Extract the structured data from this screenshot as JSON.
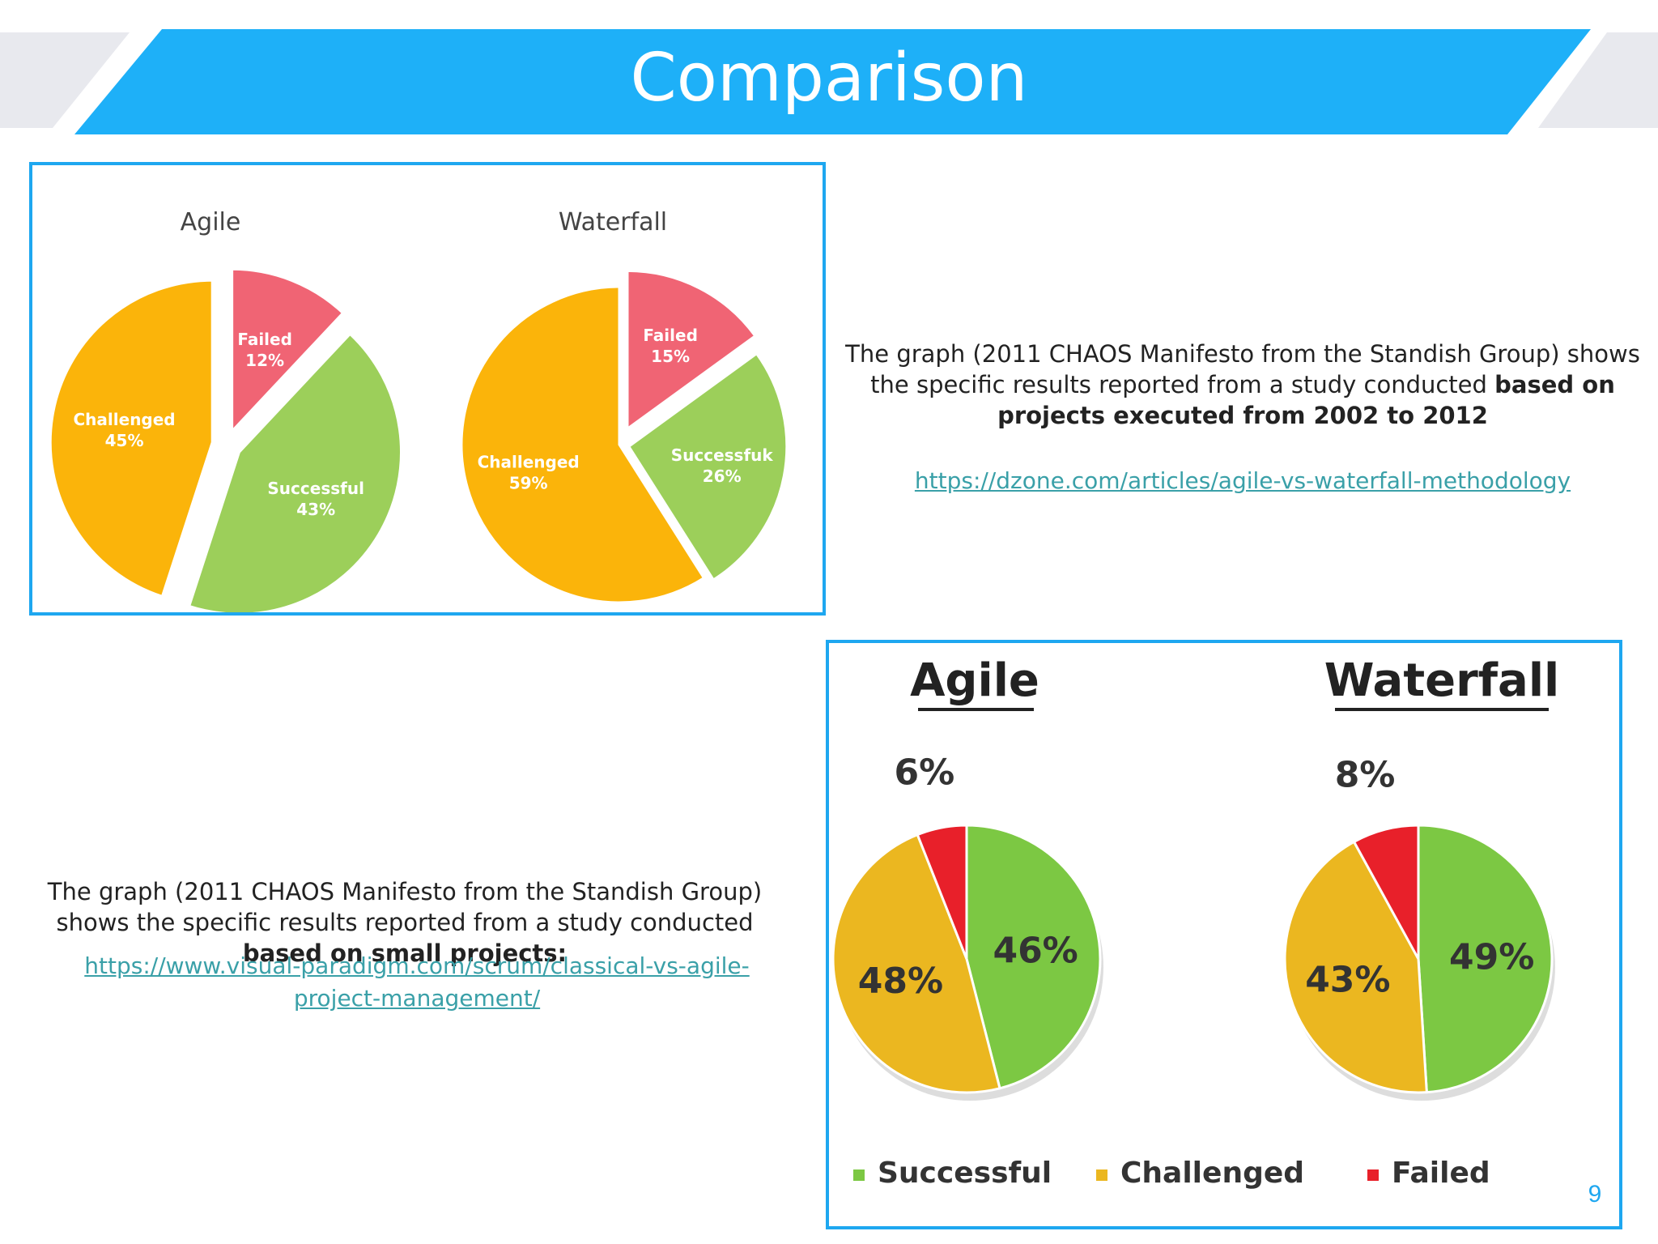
{
  "slide": {
    "title": "Comparison",
    "page_number": "9",
    "colors": {
      "header_blue": "#1eb0f8",
      "frame_blue": "#1ea7f0",
      "link_teal": "#3aa0a8"
    }
  },
  "text_block_1": {
    "before_bold": "The graph (2011 CHAOS Manifesto from the Standish Group) shows the specific results reported from a study conducted ",
    "bold": "based on projects executed from 2002 to 2012",
    "link": "https://dzone.com/articles/agile-vs-waterfall-methodology"
  },
  "text_block_2": {
    "before_bold": "The graph (2011 CHAOS Manifesto from the Standish Group) shows the specific results reported from a study conducted ",
    "bold": "based on small projects:",
    "link": "https://www.visual-paradigm.com/scrum/classical-vs-agile-project-management/"
  },
  "chart_data": [
    {
      "type": "pie",
      "title": "Agile",
      "slices": [
        {
          "label": "Failed",
          "value": 12,
          "display": "12%",
          "color": "#f06474"
        },
        {
          "label": "Successful",
          "value": 43,
          "display": "43%",
          "color": "#9ccf5a"
        },
        {
          "label": "Challenged",
          "value": 45,
          "display": "45%",
          "color": "#fbb40a"
        }
      ]
    },
    {
      "type": "pie",
      "title": "Waterfall",
      "slices": [
        {
          "label": "Failed",
          "value": 15,
          "display": "15%",
          "color": "#f06474"
        },
        {
          "label": "Successfuk",
          "value": 26,
          "display": "26%",
          "color": "#9ccf5a"
        },
        {
          "label": "Challenged",
          "value": 59,
          "display": "59%",
          "color": "#fbb40a"
        }
      ]
    },
    {
      "type": "pie",
      "title": "Agile",
      "slices": [
        {
          "label": "Successful",
          "value": 46,
          "display": "46%",
          "color": "#7cc843"
        },
        {
          "label": "Challenged",
          "value": 48,
          "display": "48%",
          "color": "#ebb720"
        },
        {
          "label": "Failed",
          "value": 6,
          "display": "6%",
          "color": "#e8202a"
        }
      ],
      "legend": "bottom"
    },
    {
      "type": "pie",
      "title": "Waterfall",
      "slices": [
        {
          "label": "Successful",
          "value": 49,
          "display": "49%",
          "color": "#7cc843"
        },
        {
          "label": "Challenged",
          "value": 43,
          "display": "43%",
          "color": "#ebb720"
        },
        {
          "label": "Failed",
          "value": 8,
          "display": "8%",
          "color": "#e8202a"
        }
      ],
      "legend": "bottom"
    }
  ],
  "legend": [
    {
      "label": "Successful",
      "color": "#7cc843"
    },
    {
      "label": "Challenged",
      "color": "#ebb720"
    },
    {
      "label": "Failed",
      "color": "#e8202a"
    }
  ]
}
